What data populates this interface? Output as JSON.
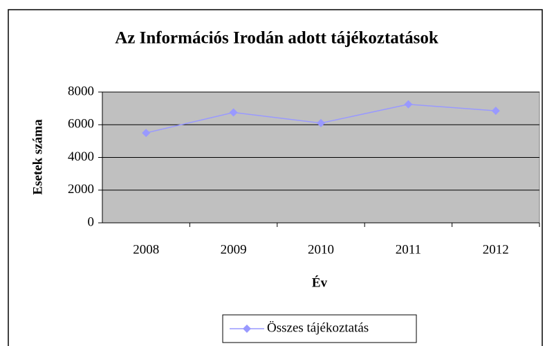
{
  "chart_data": {
    "type": "line",
    "title": "Az Információs Irodán adott tájékoztatások",
    "x_label": "Év",
    "y_label": "Esetek száma",
    "categories": [
      "2008",
      "2009",
      "2010",
      "2011",
      "2012"
    ],
    "series": [
      {
        "name": "Összes tájékoztatás",
        "color": "#9999ff",
        "values": [
          5500,
          6750,
          6100,
          7250,
          6850
        ]
      }
    ],
    "ylim": [
      0,
      8000
    ],
    "yticks": [
      0,
      2000,
      4000,
      6000,
      8000
    ],
    "grid": true,
    "legend": "bottom"
  }
}
